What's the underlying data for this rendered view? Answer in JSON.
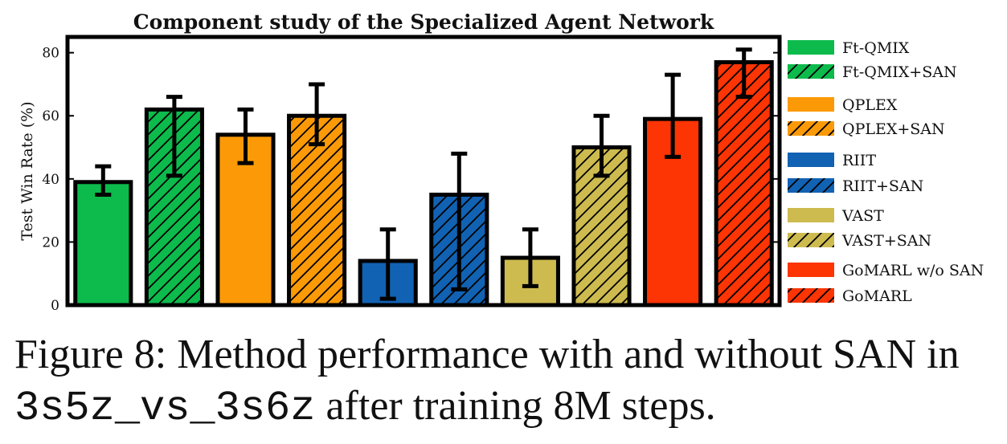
{
  "chart_data": {
    "type": "bar",
    "title": "Component study of the Specialized Agent Network",
    "ylabel": "Test Win Rate (%)",
    "xlabel": "",
    "ylim": [
      0,
      85
    ],
    "yticks": [
      0,
      20,
      40,
      60,
      80
    ],
    "legend_position": "right, outside plot",
    "series": [
      {
        "name": "Ft-QMIX",
        "value": 39,
        "err_low": 35,
        "err_high": 44,
        "color": "#0cbb4c",
        "hatched": false
      },
      {
        "name": "Ft-QMIX+SAN",
        "value": 62,
        "err_low": 41,
        "err_high": 66,
        "color": "#0cbb4c",
        "hatched": true
      },
      {
        "name": "QPLEX",
        "value": 54,
        "err_low": 45,
        "err_high": 62,
        "color": "#fb9a06",
        "hatched": false
      },
      {
        "name": "QPLEX+SAN",
        "value": 60,
        "err_low": 51,
        "err_high": 70,
        "color": "#fb9a06",
        "hatched": true
      },
      {
        "name": "RIIT",
        "value": 14,
        "err_low": 2,
        "err_high": 24,
        "color": "#1162b3",
        "hatched": false
      },
      {
        "name": "RIIT+SAN",
        "value": 35,
        "err_low": 5,
        "err_high": 48,
        "color": "#1162b3",
        "hatched": true
      },
      {
        "name": "VAST",
        "value": 15,
        "err_low": 6,
        "err_high": 24,
        "color": "#cdbb4f",
        "hatched": false
      },
      {
        "name": "VAST+SAN",
        "value": 50,
        "err_low": 41,
        "err_high": 60,
        "color": "#cdbb4f",
        "hatched": true
      },
      {
        "name": "GoMARL w/o SAN",
        "value": 59,
        "err_low": 47,
        "err_high": 73,
        "color": "#fd3403",
        "hatched": false
      },
      {
        "name": "GoMARL",
        "value": 77,
        "err_low": 66,
        "err_high": 81,
        "color": "#fd3403",
        "hatched": true
      }
    ]
  },
  "caption": {
    "part1": "Figure 8: Method performance with and without SAN in ",
    "code": "3s5z_vs_3s6z",
    "part2": " after training 8M steps."
  }
}
